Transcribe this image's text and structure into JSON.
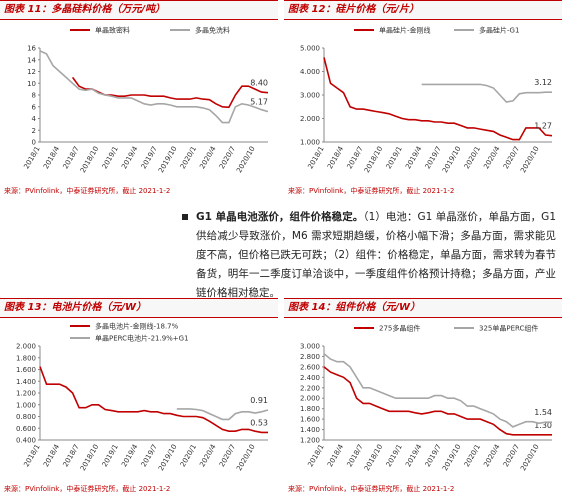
{
  "chart_data": [
    {
      "type": "line",
      "figure_label": "图表 11：",
      "title": "多晶硅料价格（万元/吨）",
      "source": "来源：PVinfolink，中泰证券研究所，截止 2021-1-2",
      "legend": "row",
      "categories": [
        "2018/1",
        null,
        null,
        "2018/4",
        null,
        null,
        "2018/7",
        null,
        null,
        "2018/10",
        null,
        null,
        "2019/1",
        null,
        null,
        "2019/4",
        null,
        null,
        "2019/7",
        null,
        null,
        "2019/10",
        null,
        null,
        "2020/1",
        null,
        null,
        "2020/4",
        null,
        null,
        "2020/7",
        null,
        null,
        "2020/10",
        null,
        null
      ],
      "ylim": [
        0,
        16
      ],
      "yticks": [
        0,
        2,
        4,
        6,
        8,
        10,
        12,
        14,
        16
      ],
      "series": [
        {
          "name": "单晶致密料",
          "color": "#c00000",
          "values": [
            null,
            null,
            null,
            null,
            null,
            11,
            9.5,
            9,
            9,
            8.5,
            8,
            8,
            7.8,
            7.8,
            8,
            8,
            8,
            7.8,
            7.8,
            7.8,
            7.5,
            7.3,
            7.3,
            7.3,
            7.5,
            7.3,
            7.2,
            6.5,
            6.0,
            5.9,
            8.0,
            9.5,
            9.5,
            9.0,
            8.5,
            8.4
          ],
          "value_labels": [
            null,
            null,
            null,
            null,
            null,
            null,
            null,
            null,
            null,
            null,
            null,
            null,
            null,
            null,
            null,
            null,
            null,
            null,
            null,
            null,
            null,
            null,
            null,
            null,
            null,
            null,
            null,
            null,
            null,
            null,
            null,
            null,
            null,
            null,
            null,
            "8.40"
          ]
        },
        {
          "name": "多晶免洗料",
          "color": "#a6a6a6",
          "values": [
            15.5,
            15,
            13,
            12,
            11,
            10,
            9,
            8.8,
            9,
            8.3,
            8,
            7.8,
            7.5,
            7.5,
            7.5,
            7.0,
            6.5,
            6.3,
            6.5,
            6.5,
            6.3,
            6.0,
            6.0,
            6.0,
            6.0,
            5.8,
            5.5,
            4.5,
            3.3,
            3.3,
            6.0,
            6.5,
            6.3,
            5.9,
            5.5,
            5.17
          ],
          "value_labels": [
            null,
            null,
            null,
            null,
            null,
            null,
            null,
            null,
            null,
            null,
            null,
            null,
            null,
            null,
            null,
            null,
            null,
            null,
            null,
            null,
            null,
            null,
            null,
            null,
            null,
            null,
            null,
            null,
            null,
            null,
            null,
            null,
            null,
            null,
            null,
            "5.17"
          ]
        }
      ]
    },
    {
      "type": "line",
      "figure_label": "图表 12：",
      "title": "硅片价格（元/片）",
      "source": "来源：PVinfolink，中泰证券研究所，截止 2021-1-2",
      "legend": "row",
      "categories": [
        "2018/1",
        null,
        null,
        "2018/4",
        null,
        null,
        "2018/7",
        null,
        null,
        "2018/10",
        null,
        null,
        "2019/1",
        null,
        null,
        "2019/4",
        null,
        null,
        "2019/7",
        null,
        null,
        "2019/10",
        null,
        null,
        "2020/1",
        null,
        null,
        "2020/4",
        null,
        null,
        "2020/7",
        null,
        null,
        "2020/10",
        null,
        null
      ],
      "ylim": [
        1,
        5
      ],
      "yticks": [
        {
          "value": 1,
          "label": "1.000"
        },
        {
          "value": 2,
          "label": "2.000"
        },
        {
          "value": 3,
          "label": "3.000"
        },
        {
          "value": 4,
          "label": "4.000"
        },
        {
          "value": 5,
          "label": "5.000"
        }
      ],
      "series": [
        {
          "name": "单晶硅片-金刚线",
          "color": "#c00000",
          "values": [
            4.6,
            3.5,
            3.3,
            3.1,
            2.5,
            2.4,
            2.4,
            2.35,
            2.3,
            2.25,
            2.2,
            2.1,
            2.0,
            1.95,
            1.95,
            1.9,
            1.9,
            1.85,
            1.85,
            1.8,
            1.8,
            1.7,
            1.6,
            1.6,
            1.55,
            1.5,
            1.45,
            1.3,
            1.2,
            1.1,
            1.1,
            1.6,
            1.6,
            1.6,
            1.3,
            1.27
          ],
          "value_labels": [
            null,
            null,
            null,
            null,
            null,
            null,
            null,
            null,
            null,
            null,
            null,
            null,
            null,
            null,
            null,
            null,
            null,
            null,
            null,
            null,
            null,
            null,
            null,
            null,
            null,
            null,
            null,
            null,
            null,
            null,
            null,
            null,
            null,
            null,
            null,
            "1.27"
          ]
        },
        {
          "name": "多晶硅片-G1",
          "color": "#a6a6a6",
          "values": [
            null,
            null,
            null,
            null,
            null,
            null,
            null,
            null,
            null,
            null,
            null,
            null,
            null,
            null,
            null,
            3.45,
            3.45,
            3.45,
            3.45,
            3.45,
            3.45,
            3.45,
            3.45,
            3.45,
            3.45,
            3.4,
            3.3,
            3.0,
            2.7,
            2.75,
            3.05,
            3.1,
            3.1,
            3.1,
            3.12,
            3.12
          ],
          "value_labels": [
            null,
            null,
            null,
            null,
            null,
            null,
            null,
            null,
            null,
            null,
            null,
            null,
            null,
            null,
            null,
            null,
            null,
            null,
            null,
            null,
            null,
            null,
            null,
            null,
            null,
            null,
            null,
            null,
            null,
            null,
            null,
            null,
            null,
            null,
            null,
            "3.12"
          ]
        }
      ]
    },
    {
      "type": "line",
      "figure_label": "图表 13：",
      "title": "电池片价格（元/W）",
      "source": "来源：PVinfolink，中泰证券研究所，截止 2021-1-2",
      "legend": "column",
      "categories": [
        "2018/1",
        null,
        null,
        "2018/4",
        null,
        null,
        "2018/7",
        null,
        null,
        "2018/10",
        null,
        null,
        "2019/1",
        null,
        null,
        "2019/4",
        null,
        null,
        "2019/7",
        null,
        null,
        "2019/10",
        null,
        null,
        "2020/1",
        null,
        null,
        "2020/4",
        null,
        null,
        "2020/7",
        null,
        null,
        "2020/10",
        null,
        null
      ],
      "ylim": [
        0.4,
        2
      ],
      "yticks": [
        {
          "value": 0.4,
          "label": "0.400"
        },
        {
          "value": 0.6,
          "label": "0.600"
        },
        {
          "value": 0.8,
          "label": "0.800"
        },
        {
          "value": 1,
          "label": "1.000"
        },
        {
          "value": 1.2,
          "label": "1.200"
        },
        {
          "value": 1.4,
          "label": "1.400"
        },
        {
          "value": 1.6,
          "label": "1.600"
        },
        {
          "value": 1.8,
          "label": "1.800"
        },
        {
          "value": 2,
          "label": "2.000"
        }
      ],
      "series": [
        {
          "name": "多晶电池片-金刚线-18.7%",
          "color": "#c00000",
          "values": [
            1.65,
            1.35,
            1.35,
            1.35,
            1.3,
            1.2,
            0.95,
            0.95,
            1.0,
            1.0,
            0.92,
            0.9,
            0.88,
            0.88,
            0.88,
            0.88,
            0.9,
            0.88,
            0.88,
            0.85,
            0.85,
            0.82,
            0.8,
            0.8,
            0.8,
            0.78,
            0.72,
            0.65,
            0.58,
            0.55,
            0.55,
            0.58,
            0.58,
            0.55,
            0.53,
            0.53
          ],
          "value_labels": [
            null,
            null,
            null,
            null,
            null,
            null,
            null,
            null,
            null,
            null,
            null,
            null,
            null,
            null,
            null,
            null,
            null,
            null,
            null,
            null,
            null,
            null,
            null,
            null,
            null,
            null,
            null,
            null,
            null,
            null,
            null,
            null,
            null,
            null,
            null,
            "0.53"
          ]
        },
        {
          "name": "单晶PERC电池片-21.9%+G1",
          "color": "#a6a6a6",
          "values": [
            null,
            null,
            null,
            null,
            null,
            null,
            null,
            null,
            null,
            null,
            null,
            null,
            null,
            null,
            null,
            null,
            null,
            null,
            null,
            null,
            null,
            0.93,
            0.93,
            0.93,
            0.92,
            0.9,
            0.85,
            0.8,
            0.75,
            0.75,
            0.85,
            0.88,
            0.88,
            0.86,
            0.88,
            0.91
          ],
          "value_labels": [
            null,
            null,
            null,
            null,
            null,
            null,
            null,
            null,
            null,
            null,
            null,
            null,
            null,
            null,
            null,
            null,
            null,
            null,
            null,
            null,
            null,
            null,
            null,
            null,
            null,
            null,
            null,
            null,
            null,
            null,
            null,
            null,
            null,
            null,
            null,
            "0.91"
          ]
        }
      ]
    },
    {
      "type": "line",
      "figure_label": "图表 14：",
      "title": "组件价格（元/W）",
      "source": "来源：PVinfolink，中泰证券研究所，截止 2021-1-2",
      "legend": "row",
      "categories": [
        "2018/1",
        null,
        null,
        "2018/4",
        null,
        null,
        "2018/7",
        null,
        null,
        "2018/10",
        null,
        null,
        "2019/1",
        null,
        null,
        "2019/4",
        null,
        null,
        "2019/7",
        null,
        null,
        "2019/10",
        null,
        null,
        "2020/1",
        null,
        null,
        "2020/4",
        null,
        null,
        "2020/7",
        null,
        null,
        "2020/10",
        null,
        null
      ],
      "ylim": [
        1.2,
        3
      ],
      "yticks": [
        {
          "value": 1.2,
          "label": "1.200"
        },
        {
          "value": 1.4,
          "label": "1.400"
        },
        {
          "value": 1.6,
          "label": "1.600"
        },
        {
          "value": 1.8,
          "label": "1.800"
        },
        {
          "value": 2,
          "label": "2.000"
        },
        {
          "value": 2.2,
          "label": "2.200"
        },
        {
          "value": 2.4,
          "label": "2.400"
        },
        {
          "value": 2.6,
          "label": "2.600"
        },
        {
          "value": 2.8,
          "label": "2.800"
        },
        {
          "value": 3,
          "label": "3.000"
        }
      ],
      "series": [
        {
          "name": "275多晶组件",
          "color": "#c00000",
          "values": [
            2.6,
            2.5,
            2.45,
            2.4,
            2.3,
            2.0,
            1.9,
            1.9,
            1.85,
            1.8,
            1.75,
            1.75,
            1.75,
            1.75,
            1.72,
            1.7,
            1.72,
            1.75,
            1.75,
            1.7,
            1.7,
            1.65,
            1.6,
            1.6,
            1.6,
            1.55,
            1.5,
            1.4,
            1.32,
            1.3,
            1.3,
            1.3,
            1.3,
            1.3,
            1.3,
            1.3
          ],
          "value_labels": [
            null,
            null,
            null,
            null,
            null,
            null,
            null,
            null,
            null,
            null,
            null,
            null,
            null,
            null,
            null,
            null,
            null,
            null,
            null,
            null,
            null,
            null,
            null,
            null,
            null,
            null,
            null,
            null,
            null,
            null,
            null,
            null,
            null,
            null,
            null,
            "1.30"
          ]
        },
        {
          "name": "325单晶PERC组件",
          "color": "#a6a6a6",
          "values": [
            2.85,
            2.75,
            2.7,
            2.7,
            2.6,
            2.4,
            2.2,
            2.2,
            2.15,
            2.1,
            2.05,
            2.0,
            2.0,
            2.0,
            2.0,
            2.0,
            2.0,
            2.05,
            2.05,
            2.0,
            2.0,
            1.95,
            1.85,
            1.85,
            1.8,
            1.75,
            1.7,
            1.6,
            1.55,
            1.45,
            1.5,
            1.55,
            1.55,
            1.52,
            1.54,
            1.54
          ],
          "value_labels": [
            null,
            null,
            null,
            null,
            null,
            null,
            null,
            null,
            null,
            null,
            null,
            null,
            null,
            null,
            null,
            null,
            null,
            null,
            null,
            null,
            null,
            null,
            null,
            null,
            null,
            null,
            null,
            null,
            null,
            null,
            null,
            null,
            null,
            null,
            null,
            "1.54"
          ]
        }
      ]
    }
  ],
  "text": {
    "bold": "G1 单晶电池涨价，组件价格稳定。",
    "body": "（1）电池：G1 单晶涨价，单晶方面，G1 供给减少导致涨价，M6 需求短期趋缓，价格小幅下滑；多晶方面，需求能见度不高，但价格已跌无可跌；（2）组件：价格稳定，单晶方面，需求转为春节备货，明年一二季度订单洽谈中，一季度组件价格预计持稳；多晶方面，产业链价格相对稳定。"
  }
}
